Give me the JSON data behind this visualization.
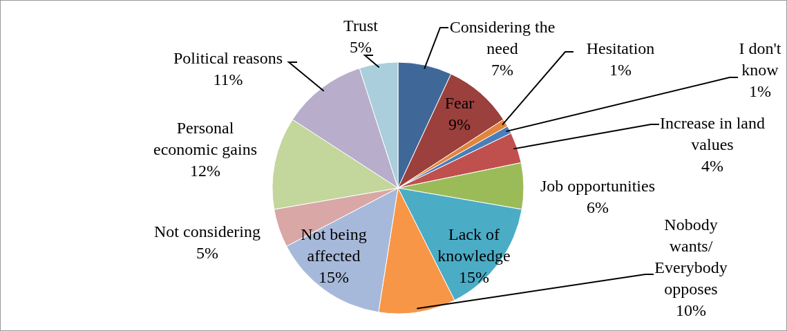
{
  "chart_data": {
    "type": "pie",
    "categories": [
      "Considering the need",
      "Fear",
      "Hesitation",
      "I don't know",
      "Increase in land values",
      "Job opportunities",
      "Lack of knowledge",
      "Nobody wants/ Everybody opposes",
      "Not being affected",
      "Not considering",
      "Personal economic gains",
      "Political reasons",
      "Trust"
    ],
    "values": [
      7,
      9,
      1,
      1,
      4,
      6,
      15,
      10,
      15,
      5,
      12,
      11,
      5
    ],
    "colors": [
      "#3f6899",
      "#9c403d",
      "#e2853a",
      "#4a7ebb",
      "#c0504d",
      "#9bbb59",
      "#4bacc6",
      "#f79646",
      "#a7b9da",
      "#d9a7a6",
      "#c3d69b",
      "#b8aecb",
      "#aacedb"
    ],
    "value_labels": [
      "7%",
      "9%",
      "1%",
      "1%",
      "4%",
      "6%",
      "15%",
      "10%",
      "15%",
      "5%",
      "12%",
      "11%",
      "5%"
    ]
  }
}
